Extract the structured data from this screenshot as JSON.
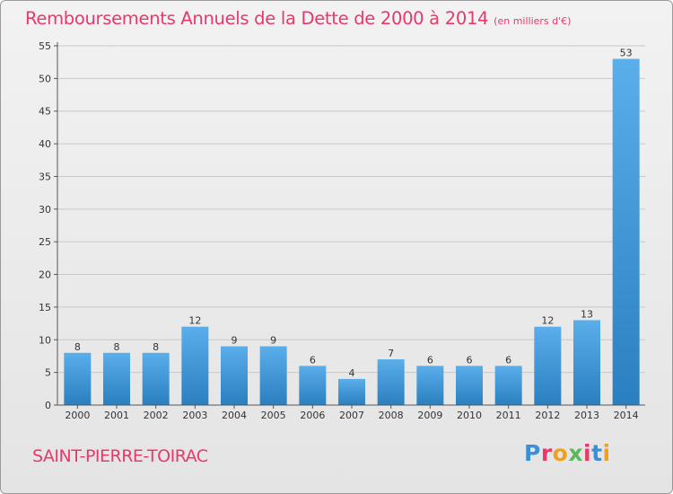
{
  "header": {
    "title": "Remboursements Annuels de la Dette de 2000 à 2014",
    "unit": "(en milliers d'€)"
  },
  "footer": {
    "commune": "SAINT-PIERRE-TOIRAC",
    "logo": "Proxiti",
    "logo_colors": [
      "#3a8fd6",
      "#e8396a",
      "#f0a020",
      "#5cb85c",
      "#e8396a",
      "#3a8fd6",
      "#f0a020"
    ]
  },
  "colors": {
    "bar_light": "#5aaeea",
    "bar_dark": "#2a7fc0",
    "title": "#e8396a",
    "grid": "#c8c8c8"
  },
  "chart_data": {
    "type": "bar",
    "title": "Remboursements Annuels de la Dette de 2000 à 2014",
    "subtitle": "(en milliers d'€)",
    "xlabel": "",
    "ylabel": "",
    "categories": [
      "2000",
      "2001",
      "2002",
      "2003",
      "2004",
      "2005",
      "2006",
      "2007",
      "2008",
      "2009",
      "2010",
      "2011",
      "2012",
      "2013",
      "2014"
    ],
    "values": [
      8,
      8,
      8,
      12,
      9,
      9,
      6,
      4,
      7,
      6,
      6,
      6,
      12,
      13,
      53
    ],
    "ylim": [
      0,
      55
    ],
    "yticks": [
      0,
      5,
      10,
      15,
      20,
      25,
      30,
      35,
      40,
      45,
      50,
      55
    ],
    "grid": true,
    "legend": "none"
  }
}
